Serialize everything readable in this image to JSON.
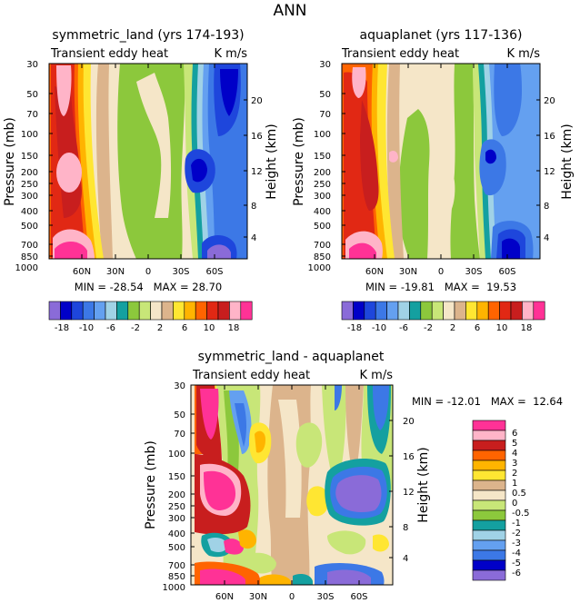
{
  "page_title": "ANN",
  "colors": {
    "top": [
      "#8a6bd8",
      "#0000c8",
      "#1e46dc",
      "#3c78e6",
      "#64a0f0",
      "#a0d2e6",
      "#14a0a0",
      "#8cc83c",
      "#c8e678",
      "#f5e6c8",
      "#dcb48c",
      "#ffe632",
      "#ffb400",
      "#ff6400",
      "#e12814",
      "#c81e1e",
      "#ffb4c8",
      "#ff3296"
    ],
    "diff": [
      "#8a6bd8",
      "#0000c8",
      "#3c78e6",
      "#64a0f0",
      "#a0d2e6",
      "#14a0a0",
      "#8cc83c",
      "#c8e678",
      "#f5e6c8",
      "#dcb48c",
      "#ffe632",
      "#ffb400",
      "#ff6400",
      "#c81e1e",
      "#ffb4c8",
      "#ff3296"
    ]
  },
  "chart_data": [
    {
      "type": "heatmap",
      "title": "symmetric_land (yrs 174-193)",
      "subtitle_left": "Transient eddy heat",
      "subtitle_right": "K m/s",
      "xlabel": "",
      "ylabel": "Pressure (mb)",
      "ylabel_right": "Height (km)",
      "x_ticks": [
        "60N",
        "30N",
        "0",
        "30S",
        "60S"
      ],
      "y_ticks": [
        "30",
        "50",
        "70",
        "100",
        "150",
        "200",
        "250",
        "300",
        "400",
        "500",
        "700",
        "850",
        "1000"
      ],
      "height_ticks": [
        "20",
        "16",
        "12",
        "8",
        "4"
      ],
      "min_max": "MIN = -28.54   MAX = 28.70",
      "colorbar_labels": [
        "-18",
        "-10",
        "-6",
        "-2",
        "2",
        "6",
        "10",
        "18"
      ],
      "levels": [
        -18,
        -14,
        -12,
        -10,
        -8,
        -6,
        -4,
        -2,
        0,
        2,
        4,
        6,
        8,
        10,
        12,
        14,
        18
      ]
    },
    {
      "type": "heatmap",
      "title": "aquaplanet (yrs 117-136)",
      "subtitle_left": "Transient eddy heat",
      "subtitle_right": "K m/s",
      "xlabel": "",
      "ylabel": "Pressure (mb)",
      "ylabel_right": "Height (km)",
      "x_ticks": [
        "60N",
        "30N",
        "0",
        "30S",
        "60S"
      ],
      "y_ticks": [
        "30",
        "50",
        "70",
        "100",
        "150",
        "200",
        "250",
        "300",
        "400",
        "500",
        "700",
        "850",
        "1000"
      ],
      "height_ticks": [
        "20",
        "16",
        "12",
        "8",
        "4"
      ],
      "min_max": "MIN = -19.81   MAX =  19.53",
      "colorbar_labels": [
        "-18",
        "-10",
        "-6",
        "-2",
        "2",
        "6",
        "10",
        "18"
      ],
      "levels": [
        -18,
        -14,
        -12,
        -10,
        -8,
        -6,
        -4,
        -2,
        0,
        2,
        4,
        6,
        8,
        10,
        12,
        14,
        18
      ]
    },
    {
      "type": "heatmap",
      "title": "symmetric_land - aquaplanet",
      "subtitle_left": "Transient eddy heat",
      "subtitle_right": "K m/s",
      "xlabel": "",
      "ylabel": "Pressure (mb)",
      "ylabel_right": "Height (km)",
      "x_ticks": [
        "60N",
        "30N",
        "0",
        "30S",
        "60S"
      ],
      "y_ticks": [
        "30",
        "50",
        "70",
        "100",
        "150",
        "200",
        "250",
        "300",
        "400",
        "500",
        "700",
        "850",
        "1000"
      ],
      "height_ticks": [
        "20",
        "16",
        "12",
        "8",
        "4"
      ],
      "min_max": "MIN = -12.01   MAX =  12.64",
      "colorbar_labels": [
        "6",
        "5",
        "4",
        "3",
        "2",
        "1",
        "0.5",
        "0",
        "-0.5",
        "-1",
        "-2",
        "-3",
        "-4",
        "-5",
        "-6"
      ],
      "levels": [
        -6,
        -5,
        -4,
        -3,
        -2,
        -1,
        -0.5,
        0,
        0.5,
        1,
        2,
        3,
        4,
        5,
        6
      ]
    }
  ]
}
